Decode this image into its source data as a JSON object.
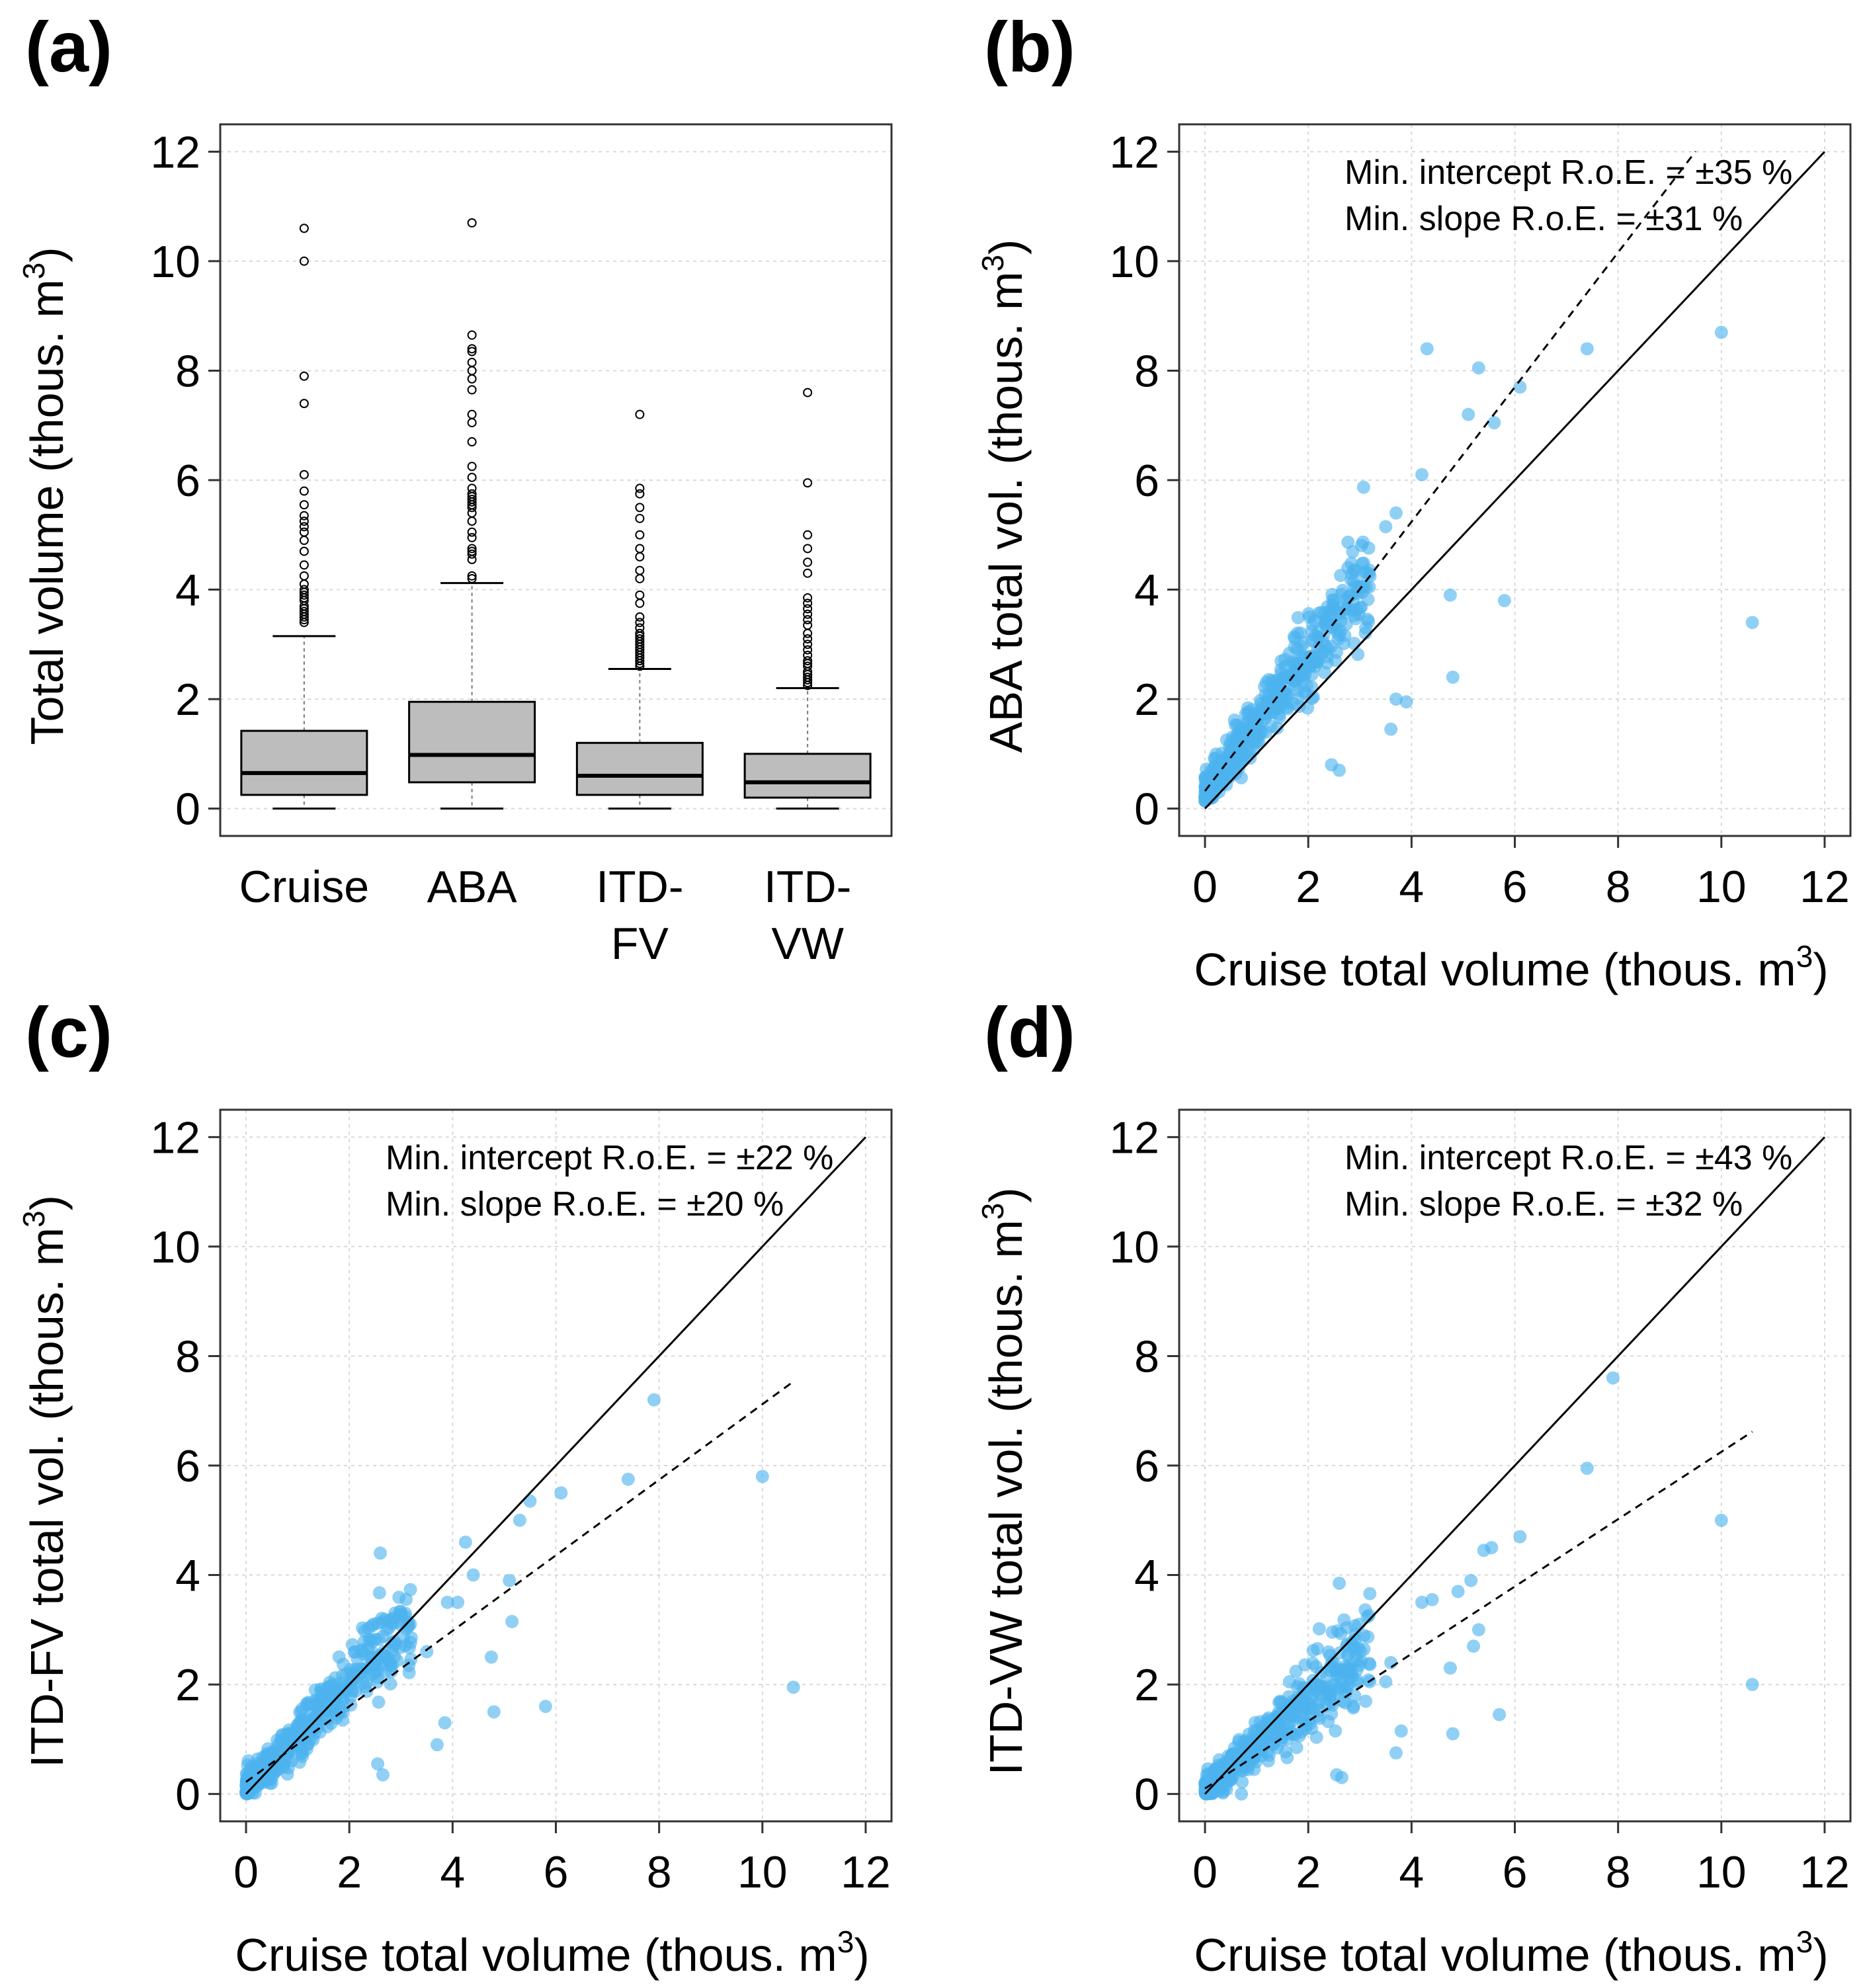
{
  "chart_data": [
    {
      "panel": "(a)",
      "type": "box",
      "categories": [
        "Cruise",
        "ABA",
        "ITD-\nFV",
        "ITD-\nVW"
      ],
      "category_lines": [
        [
          "Cruise"
        ],
        [
          "ABA"
        ],
        [
          "ITD-",
          "FV"
        ],
        [
          "ITD-",
          "VW"
        ]
      ],
      "boxes": [
        {
          "name": "Cruise",
          "min": 0.0,
          "q1": 0.25,
          "median": 0.65,
          "q3": 1.42,
          "whisker_high": 3.15,
          "outliers": [
            3.4,
            3.45,
            3.5,
            3.55,
            3.6,
            3.65,
            3.7,
            3.8,
            3.85,
            3.9,
            3.95,
            4.0,
            4.1,
            4.25,
            4.45,
            4.7,
            4.9,
            5.05,
            5.15,
            5.25,
            5.35,
            5.55,
            5.8,
            6.1,
            7.4,
            7.9,
            10.0,
            10.6
          ]
        },
        {
          "name": "ABA",
          "min": 0.0,
          "q1": 0.48,
          "median": 0.98,
          "q3": 1.95,
          "whisker_high": 4.12,
          "outliers": [
            4.2,
            4.25,
            4.55,
            4.65,
            4.7,
            4.75,
            4.95,
            5.05,
            5.25,
            5.4,
            5.5,
            5.55,
            5.6,
            5.65,
            5.7,
            5.75,
            5.85,
            6.05,
            6.25,
            6.7,
            7.05,
            7.2,
            7.65,
            7.85,
            8.0,
            8.15,
            8.35,
            8.4,
            8.65,
            10.7
          ]
        },
        {
          "name": "ITD-FV",
          "min": 0.0,
          "q1": 0.25,
          "median": 0.6,
          "q3": 1.2,
          "whisker_high": 2.55,
          "outliers": [
            2.6,
            2.65,
            2.7,
            2.75,
            2.8,
            2.85,
            2.9,
            2.95,
            3.0,
            3.05,
            3.1,
            3.15,
            3.2,
            3.3,
            3.4,
            3.5,
            3.75,
            3.9,
            4.2,
            4.35,
            4.6,
            4.75,
            5.0,
            5.3,
            5.5,
            5.75,
            5.85,
            7.2
          ]
        },
        {
          "name": "ITD-VW",
          "min": 0.0,
          "q1": 0.2,
          "median": 0.48,
          "q3": 1.0,
          "whisker_high": 2.2,
          "outliers": [
            2.25,
            2.3,
            2.35,
            2.4,
            2.45,
            2.5,
            2.6,
            2.65,
            2.7,
            2.8,
            2.9,
            3.0,
            3.1,
            3.2,
            3.35,
            3.45,
            3.55,
            3.65,
            3.75,
            3.85,
            4.3,
            4.5,
            4.75,
            5.0,
            5.95,
            7.6
          ]
        }
      ],
      "ylabel": "Total volume (thous. m3)",
      "ylim": [
        -0.5,
        12.5
      ],
      "yticks": [
        0,
        2,
        4,
        6,
        8,
        10,
        12
      ]
    },
    {
      "panel": "(b)",
      "type": "scatter",
      "xlabel": "Cruise total volume (thous. m3)",
      "ylabel": "ABA total vol. (thous. m3)",
      "xlim": [
        -0.5,
        12.5
      ],
      "ylim": [
        -0.5,
        12.5
      ],
      "ticks": [
        0,
        2,
        4,
        6,
        8,
        10,
        12
      ],
      "annotation_1": "Min. intercept R.o.E. = ±35 %",
      "annotation_2": "Min. slope R.o.E. = ±31 %",
      "one_to_one": {
        "x0": 0,
        "x1": 12
      },
      "fit_line": {
        "intercept": 0.32,
        "slope": 1.23,
        "x0": 0,
        "x1": 9.5
      },
      "special_points": [
        [
          10.0,
          8.7
        ],
        [
          10.6,
          3.4
        ],
        [
          7.4,
          8.4
        ],
        [
          4.3,
          8.4
        ],
        [
          5.3,
          8.05
        ],
        [
          5.1,
          7.2
        ],
        [
          5.6,
          7.05
        ],
        [
          6.1,
          7.7
        ],
        [
          4.75,
          3.9
        ],
        [
          5.8,
          3.8
        ],
        [
          4.8,
          2.4
        ],
        [
          3.7,
          2.0
        ],
        [
          3.9,
          1.95
        ],
        [
          3.6,
          1.45
        ],
        [
          2.45,
          0.8
        ],
        [
          2.6,
          0.7
        ],
        [
          3.0,
          4.05
        ],
        [
          3.5,
          5.15
        ],
        [
          3.7,
          5.4
        ],
        [
          4.2,
          6.1
        ]
      ],
      "cloud": {
        "n": 480,
        "slope": 1.23,
        "intercept": 0.32,
        "noise": 0.32,
        "xmax": 3.2,
        "seed": 7
      }
    },
    {
      "panel": "(c)",
      "type": "scatter",
      "xlabel": "Cruise total volume (thous. m3)",
      "ylabel": "ITD-FV total vol. (thous. m3)",
      "xlim": [
        -0.5,
        12.5
      ],
      "ylim": [
        -0.5,
        12.5
      ],
      "ticks": [
        0,
        2,
        4,
        6,
        8,
        10,
        12
      ],
      "annotation_1": "Min. intercept R.o.E. = ±22 %",
      "annotation_2": "Min. slope R.o.E. = ±20 %",
      "one_to_one": {
        "x0": 0,
        "x1": 12
      },
      "fit_line": {
        "intercept": 0.22,
        "slope": 0.69,
        "x0": 0,
        "x1": 10.6
      },
      "special_points": [
        [
          10.6,
          1.95
        ],
        [
          10.0,
          5.8
        ],
        [
          7.9,
          7.2
        ],
        [
          7.4,
          5.75
        ],
        [
          6.1,
          5.5
        ],
        [
          5.8,
          1.6
        ],
        [
          4.8,
          1.5
        ],
        [
          4.75,
          2.5
        ],
        [
          5.15,
          3.15
        ],
        [
          5.1,
          3.9
        ],
        [
          5.3,
          5.0
        ],
        [
          5.5,
          5.35
        ],
        [
          4.25,
          4.6
        ],
        [
          4.4,
          4.0
        ],
        [
          3.7,
          0.9
        ],
        [
          3.85,
          1.3
        ],
        [
          2.6,
          4.4
        ],
        [
          2.55,
          0.55
        ],
        [
          2.65,
          0.35
        ],
        [
          3.5,
          2.6
        ],
        [
          3.9,
          3.5
        ],
        [
          4.1,
          3.5
        ]
      ],
      "cloud": {
        "n": 480,
        "slope": 0.95,
        "intercept": 0.12,
        "noise": 0.3,
        "xmax": 3.2,
        "seed": 11
      }
    },
    {
      "panel": "(d)",
      "type": "scatter",
      "xlabel": "Cruise total volume (thous. m3)",
      "ylabel": "ITD-VW total vol. (thous. m3)",
      "xlim": [
        -0.5,
        12.5
      ],
      "ylim": [
        -0.5,
        12.5
      ],
      "ticks": [
        0,
        2,
        4,
        6,
        8,
        10,
        12
      ],
      "annotation_1": "Min. intercept R.o.E. = ±43 %",
      "annotation_2": "Min. slope R.o.E. = ±32 %",
      "one_to_one": {
        "x0": 0,
        "x1": 12
      },
      "fit_line": {
        "intercept": 0.1,
        "slope": 0.615,
        "x0": 0,
        "x1": 10.6
      },
      "special_points": [
        [
          10.6,
          2.0
        ],
        [
          10.0,
          5.0
        ],
        [
          7.9,
          7.6
        ],
        [
          7.4,
          5.95
        ],
        [
          6.1,
          4.7
        ],
        [
          5.7,
          1.45
        ],
        [
          4.8,
          1.1
        ],
        [
          4.75,
          2.3
        ],
        [
          5.2,
          2.7
        ],
        [
          5.3,
          3.0
        ],
        [
          5.4,
          4.45
        ],
        [
          5.55,
          4.5
        ],
        [
          5.15,
          3.9
        ],
        [
          4.9,
          3.7
        ],
        [
          4.4,
          3.55
        ],
        [
          4.2,
          3.5
        ],
        [
          3.7,
          0.75
        ],
        [
          3.8,
          1.15
        ],
        [
          2.6,
          3.85
        ],
        [
          2.55,
          0.35
        ],
        [
          2.65,
          0.3
        ],
        [
          3.6,
          2.4
        ],
        [
          3.5,
          2.05
        ]
      ],
      "cloud": {
        "n": 480,
        "slope": 0.82,
        "intercept": 0.08,
        "noise": 0.28,
        "xmax": 3.2,
        "seed": 23
      }
    }
  ],
  "panel_labels": [
    "(a)",
    "(b)",
    "(c)",
    "(d)"
  ],
  "axis_title_base": {
    "a_y": "Total volume (thous. m",
    "b_y": "ABA total vol. (thous. m",
    "c_y": "ITD-FV total vol. (thous. m",
    "d_y": "ITD-VW total vol. (thous. m",
    "x": "Cruise total volume (thous. m",
    "sup": "3",
    "close": ")"
  }
}
